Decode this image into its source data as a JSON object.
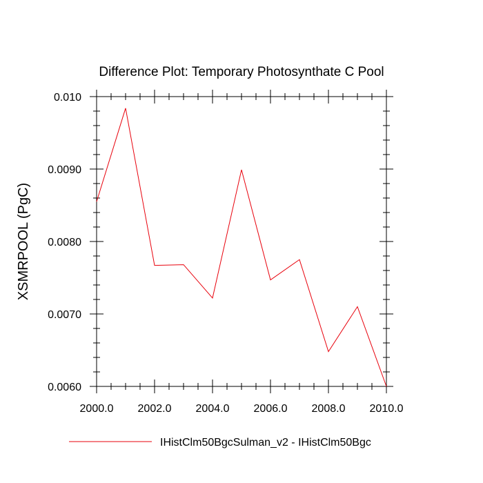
{
  "chart_data": {
    "type": "line",
    "title": "Difference Plot: Temporary Photosynthate C Pool",
    "ylabel": "XSMRPOOL  (PgC)",
    "xlabel": "",
    "xlim": [
      2000,
      2010
    ],
    "ylim": [
      0.006,
      0.01
    ],
    "x_ticks": [
      2000,
      2002,
      2004,
      2006,
      2008,
      2010
    ],
    "x_tick_labels": [
      "2000.0",
      "2002.0",
      "2004.0",
      "2006.0",
      "2008.0",
      "2010.0"
    ],
    "y_ticks": [
      0.006,
      0.007,
      0.008,
      0.009,
      0.01
    ],
    "y_tick_labels": [
      "0.0060",
      "0.0070",
      "0.0080",
      "0.0090",
      "0.010"
    ],
    "grid": false,
    "legend_position": "bottom",
    "series": [
      {
        "name": "IHistClm50BgcSulman_v2 - IHistClm50Bgc",
        "color": "#e8000b",
        "x": [
          2000,
          2001,
          2002,
          2003,
          2004,
          2005,
          2006,
          2007,
          2008,
          2009,
          2010
        ],
        "values": [
          0.00855,
          0.00984,
          0.00767,
          0.00768,
          0.00722,
          0.00899,
          0.00747,
          0.00775,
          0.00648,
          0.0071,
          0.006
        ]
      }
    ]
  }
}
